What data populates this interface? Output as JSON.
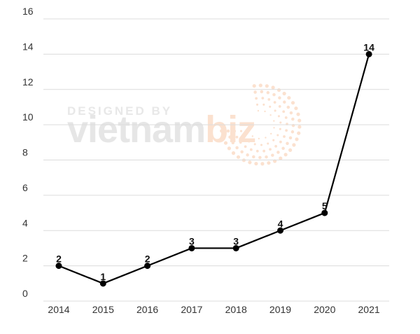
{
  "chart_data": {
    "type": "line",
    "categories": [
      "2014",
      "2015",
      "2016",
      "2017",
      "2018",
      "2019",
      "2020",
      "2021"
    ],
    "values": [
      2,
      1,
      2,
      3,
      3,
      4,
      5,
      14
    ],
    "data_labels": [
      "2",
      "1",
      "2",
      "3",
      "3",
      "4",
      "5",
      "14"
    ],
    "y_ticks": [
      "0",
      "2",
      "4",
      "6",
      "8",
      "10",
      "12",
      "14",
      "16"
    ],
    "ylim": [
      0,
      16
    ],
    "grid": true,
    "title": "",
    "xlabel": "",
    "ylabel": "",
    "line_color": "#000000",
    "marker_color": "#000000"
  },
  "watermark": {
    "top": "DESIGNED BY",
    "brand_left": "vietnam",
    "brand_right": "biz",
    "color_gray": "#e6e6e6",
    "color_accent": "#fbe1cf"
  }
}
